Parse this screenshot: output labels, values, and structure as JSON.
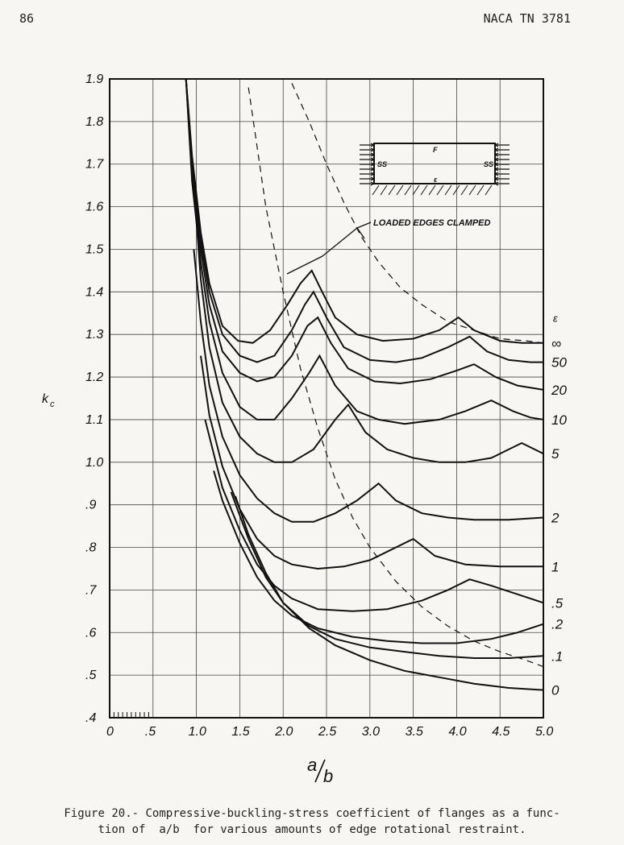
{
  "page": {
    "number": "86",
    "header": "NACA TN 3781"
  },
  "caption": {
    "line1": "Figure 20.- Compressive-buckling-stress coefficient of flanges as a func-",
    "line2": "tion of  a/b  for various amounts of edge rotational restraint."
  },
  "annotations": {
    "loaded_edges": "LOADED EDGES CLAMPED",
    "inset_top": "F",
    "inset_left": "SS",
    "inset_right": "SS",
    "inset_bottom": "ε"
  },
  "chart_data": {
    "type": "line",
    "xlabel": "a/b",
    "ylabel": "kc",
    "xlim": [
      0,
      5.0
    ],
    "ylim": [
      0.4,
      1.9
    ],
    "grid": true,
    "x_ticks": [
      "0",
      ".5",
      "1.0",
      "1.5",
      "2.0",
      "2.5",
      "3.0",
      "3.5",
      "4.0",
      "4.5",
      "5.0"
    ],
    "y_ticks": [
      ".4",
      ".5",
      ".6",
      ".7",
      ".8",
      ".9",
      "1.0",
      "1.1",
      "1.2",
      "1.3",
      "1.4",
      "1.5",
      "1.6",
      "1.7",
      "1.8",
      "1.9"
    ],
    "legend_title": "ε",
    "series": [
      {
        "name": "∞",
        "style": "solid",
        "points": [
          [
            0.88,
            1.9
          ],
          [
            0.95,
            1.72
          ],
          [
            1.05,
            1.54
          ],
          [
            1.15,
            1.42
          ],
          [
            1.3,
            1.32
          ],
          [
            1.48,
            1.285
          ],
          [
            1.65,
            1.28
          ],
          [
            1.85,
            1.31
          ],
          [
            2.05,
            1.37
          ],
          [
            2.2,
            1.42
          ],
          [
            2.33,
            1.45
          ],
          [
            2.45,
            1.4
          ],
          [
            2.6,
            1.34
          ],
          [
            2.85,
            1.3
          ],
          [
            3.15,
            1.285
          ],
          [
            3.5,
            1.29
          ],
          [
            3.8,
            1.31
          ],
          [
            4.02,
            1.34
          ],
          [
            4.2,
            1.31
          ],
          [
            4.5,
            1.285
          ],
          [
            4.75,
            1.28
          ],
          [
            5.0,
            1.28
          ]
        ]
      },
      {
        "name": "50",
        "style": "solid",
        "points": [
          [
            0.88,
            1.9
          ],
          [
            0.95,
            1.7
          ],
          [
            1.05,
            1.52
          ],
          [
            1.15,
            1.4
          ],
          [
            1.3,
            1.3
          ],
          [
            1.5,
            1.25
          ],
          [
            1.7,
            1.235
          ],
          [
            1.9,
            1.25
          ],
          [
            2.1,
            1.31
          ],
          [
            2.25,
            1.37
          ],
          [
            2.35,
            1.4
          ],
          [
            2.5,
            1.34
          ],
          [
            2.7,
            1.27
          ],
          [
            3.0,
            1.24
          ],
          [
            3.3,
            1.235
          ],
          [
            3.6,
            1.245
          ],
          [
            3.9,
            1.27
          ],
          [
            4.15,
            1.295
          ],
          [
            4.35,
            1.26
          ],
          [
            4.6,
            1.24
          ],
          [
            4.85,
            1.235
          ],
          [
            5.0,
            1.235
          ]
        ]
      },
      {
        "name": "20",
        "style": "solid",
        "points": [
          [
            0.88,
            1.9
          ],
          [
            0.95,
            1.68
          ],
          [
            1.05,
            1.5
          ],
          [
            1.15,
            1.37
          ],
          [
            1.3,
            1.26
          ],
          [
            1.5,
            1.21
          ],
          [
            1.7,
            1.19
          ],
          [
            1.9,
            1.2
          ],
          [
            2.1,
            1.25
          ],
          [
            2.28,
            1.32
          ],
          [
            2.4,
            1.34
          ],
          [
            2.55,
            1.28
          ],
          [
            2.75,
            1.22
          ],
          [
            3.05,
            1.19
          ],
          [
            3.35,
            1.185
          ],
          [
            3.7,
            1.195
          ],
          [
            4.0,
            1.215
          ],
          [
            4.2,
            1.23
          ],
          [
            4.45,
            1.2
          ],
          [
            4.7,
            1.18
          ],
          [
            5.0,
            1.17
          ]
        ]
      },
      {
        "name": "10",
        "style": "solid",
        "points": [
          [
            0.88,
            1.9
          ],
          [
            0.95,
            1.66
          ],
          [
            1.05,
            1.47
          ],
          [
            1.15,
            1.33
          ],
          [
            1.3,
            1.21
          ],
          [
            1.5,
            1.13
          ],
          [
            1.7,
            1.1
          ],
          [
            1.9,
            1.1
          ],
          [
            2.1,
            1.15
          ],
          [
            2.3,
            1.21
          ],
          [
            2.42,
            1.25
          ],
          [
            2.6,
            1.18
          ],
          [
            2.85,
            1.12
          ],
          [
            3.1,
            1.1
          ],
          [
            3.4,
            1.09
          ],
          [
            3.8,
            1.1
          ],
          [
            4.1,
            1.12
          ],
          [
            4.4,
            1.145
          ],
          [
            4.65,
            1.12
          ],
          [
            4.85,
            1.105
          ],
          [
            5.0,
            1.1
          ]
        ]
      },
      {
        "name": "5",
        "style": "solid",
        "points": [
          [
            0.9,
            1.85
          ],
          [
            0.97,
            1.65
          ],
          [
            1.05,
            1.43
          ],
          [
            1.15,
            1.27
          ],
          [
            1.3,
            1.14
          ],
          [
            1.5,
            1.06
          ],
          [
            1.7,
            1.02
          ],
          [
            1.9,
            1.0
          ],
          [
            2.1,
            1.0
          ],
          [
            2.35,
            1.03
          ],
          [
            2.6,
            1.1
          ],
          [
            2.75,
            1.135
          ],
          [
            2.95,
            1.07
          ],
          [
            3.2,
            1.03
          ],
          [
            3.5,
            1.01
          ],
          [
            3.8,
            1.0
          ],
          [
            4.1,
            1.0
          ],
          [
            4.4,
            1.01
          ],
          [
            4.6,
            1.03
          ],
          [
            4.75,
            1.045
          ],
          [
            4.9,
            1.03
          ],
          [
            5.0,
            1.02
          ]
        ]
      },
      {
        "name": "2",
        "style": "solid",
        "points": [
          [
            0.97,
            1.5
          ],
          [
            1.05,
            1.33
          ],
          [
            1.15,
            1.18
          ],
          [
            1.3,
            1.06
          ],
          [
            1.5,
            0.97
          ],
          [
            1.7,
            0.915
          ],
          [
            1.9,
            0.88
          ],
          [
            2.1,
            0.86
          ],
          [
            2.35,
            0.86
          ],
          [
            2.6,
            0.88
          ],
          [
            2.85,
            0.91
          ],
          [
            3.1,
            0.95
          ],
          [
            3.3,
            0.91
          ],
          [
            3.6,
            0.88
          ],
          [
            3.9,
            0.87
          ],
          [
            4.2,
            0.865
          ],
          [
            4.6,
            0.865
          ],
          [
            5.0,
            0.87
          ]
        ]
      },
      {
        "name": "1",
        "style": "solid",
        "points": [
          [
            1.05,
            1.25
          ],
          [
            1.15,
            1.11
          ],
          [
            1.3,
            0.99
          ],
          [
            1.5,
            0.89
          ],
          [
            1.7,
            0.82
          ],
          [
            1.9,
            0.78
          ],
          [
            2.1,
            0.76
          ],
          [
            2.4,
            0.75
          ],
          [
            2.7,
            0.755
          ],
          [
            3.0,
            0.77
          ],
          [
            3.25,
            0.795
          ],
          [
            3.5,
            0.82
          ],
          [
            3.75,
            0.78
          ],
          [
            4.1,
            0.76
          ],
          [
            4.5,
            0.755
          ],
          [
            5.0,
            0.755
          ]
        ]
      },
      {
        "name": ".5",
        "style": "solid",
        "points": [
          [
            1.1,
            1.1
          ],
          [
            1.2,
            1.02
          ],
          [
            1.3,
            0.94
          ],
          [
            1.5,
            0.84
          ],
          [
            1.7,
            0.76
          ],
          [
            1.9,
            0.71
          ],
          [
            2.1,
            0.68
          ],
          [
            2.4,
            0.655
          ],
          [
            2.8,
            0.65
          ],
          [
            3.2,
            0.655
          ],
          [
            3.6,
            0.675
          ],
          [
            3.9,
            0.7
          ],
          [
            4.15,
            0.725
          ],
          [
            4.4,
            0.71
          ],
          [
            4.7,
            0.69
          ],
          [
            5.0,
            0.67
          ]
        ]
      },
      {
        "name": ".2",
        "style": "solid",
        "points": [
          [
            1.2,
            0.98
          ],
          [
            1.3,
            0.91
          ],
          [
            1.5,
            0.81
          ],
          [
            1.7,
            0.73
          ],
          [
            1.9,
            0.675
          ],
          [
            2.1,
            0.64
          ],
          [
            2.4,
            0.61
          ],
          [
            2.8,
            0.59
          ],
          [
            3.2,
            0.58
          ],
          [
            3.6,
            0.575
          ],
          [
            4.0,
            0.575
          ],
          [
            4.4,
            0.585
          ],
          [
            4.7,
            0.6
          ],
          [
            5.0,
            0.62
          ]
        ]
      },
      {
        "name": ".1",
        "style": "solid",
        "points": [
          [
            1.4,
            0.93
          ],
          [
            1.6,
            0.82
          ],
          [
            1.8,
            0.73
          ],
          [
            2.0,
            0.67
          ],
          [
            2.3,
            0.615
          ],
          [
            2.6,
            0.585
          ],
          [
            3.0,
            0.565
          ],
          [
            3.4,
            0.555
          ],
          [
            3.8,
            0.545
          ],
          [
            4.2,
            0.54
          ],
          [
            4.6,
            0.54
          ],
          [
            5.0,
            0.545
          ]
        ]
      },
      {
        "name": "0",
        "style": "solid",
        "points": [
          [
            1.45,
            0.92
          ],
          [
            1.6,
            0.83
          ],
          [
            1.8,
            0.74
          ],
          [
            2.0,
            0.67
          ],
          [
            2.3,
            0.61
          ],
          [
            2.6,
            0.57
          ],
          [
            3.0,
            0.535
          ],
          [
            3.4,
            0.51
          ],
          [
            3.8,
            0.495
          ],
          [
            4.2,
            0.48
          ],
          [
            4.6,
            0.47
          ],
          [
            5.0,
            0.465
          ]
        ]
      },
      {
        "name": "LOADED EDGES CLAMPED",
        "style": "dashed",
        "points": [
          [
            1.6,
            1.88
          ],
          [
            1.8,
            1.6
          ],
          [
            2.0,
            1.4
          ],
          [
            2.2,
            1.22
          ],
          [
            2.4,
            1.08
          ],
          [
            2.6,
            0.96
          ],
          [
            2.8,
            0.87
          ],
          [
            3.0,
            0.8
          ],
          [
            3.3,
            0.72
          ],
          [
            3.6,
            0.66
          ],
          [
            3.9,
            0.615
          ],
          [
            4.2,
            0.58
          ],
          [
            4.5,
            0.555
          ],
          [
            4.8,
            0.535
          ],
          [
            5.0,
            0.52
          ]
        ]
      },
      {
        "name": "LOADED EDGES CLAMPED",
        "style": "dashed",
        "points": [
          [
            2.1,
            1.89
          ],
          [
            2.3,
            1.8
          ],
          [
            2.5,
            1.7
          ],
          [
            2.7,
            1.61
          ],
          [
            2.9,
            1.53
          ],
          [
            3.1,
            1.47
          ],
          [
            3.35,
            1.41
          ],
          [
            3.6,
            1.37
          ],
          [
            3.9,
            1.33
          ],
          [
            4.2,
            1.31
          ],
          [
            4.5,
            1.29
          ],
          [
            4.8,
            1.285
          ],
          [
            5.0,
            1.28
          ]
        ]
      }
    ]
  }
}
